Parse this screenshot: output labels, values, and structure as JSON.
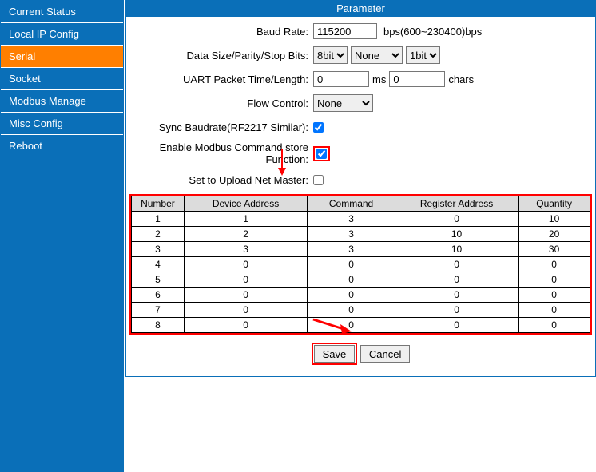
{
  "sidebar": {
    "items": [
      {
        "label": "Current Status"
      },
      {
        "label": "Local IP Config"
      },
      {
        "label": "Serial"
      },
      {
        "label": "Socket"
      },
      {
        "label": "Modbus Manage"
      },
      {
        "label": "Misc Config"
      },
      {
        "label": "Reboot"
      }
    ],
    "active_index": 2
  },
  "panel": {
    "title": "Parameter",
    "baud_rate": {
      "label": "Baud Rate:",
      "value": "115200",
      "suffix": "bps(600~230400)bps"
    },
    "data_bits": {
      "label": "Data Size/Parity/Stop Bits:",
      "size": "8bit",
      "parity": "None",
      "stop": "1bit"
    },
    "packet": {
      "label": "UART Packet Time/Length:",
      "time": "0",
      "time_unit": "ms",
      "length": "0",
      "length_unit": "chars"
    },
    "flow": {
      "label": "Flow Control:",
      "value": "None"
    },
    "sync": {
      "label": "Sync Baudrate(RF2217 Similar):",
      "checked": true
    },
    "enable_modbus": {
      "label": "Enable Modbus Command store Function:",
      "checked": true
    },
    "upload": {
      "label": "Set to Upload Net Master:",
      "checked": false
    }
  },
  "table": {
    "headers": [
      "Number",
      "Device Address",
      "Command",
      "Register Address",
      "Quantity"
    ],
    "rows": [
      [
        "1",
        "1",
        "3",
        "0",
        "10"
      ],
      [
        "2",
        "2",
        "3",
        "10",
        "20"
      ],
      [
        "3",
        "3",
        "3",
        "10",
        "30"
      ],
      [
        "4",
        "0",
        "0",
        "0",
        "0"
      ],
      [
        "5",
        "0",
        "0",
        "0",
        "0"
      ],
      [
        "6",
        "0",
        "0",
        "0",
        "0"
      ],
      [
        "7",
        "0",
        "0",
        "0",
        "0"
      ],
      [
        "8",
        "0",
        "0",
        "0",
        "0"
      ]
    ]
  },
  "buttons": {
    "save": "Save",
    "cancel": "Cancel"
  },
  "colors": {
    "primary": "#0a6fb8",
    "active": "#ff7f00",
    "highlight": "#ff0000"
  }
}
